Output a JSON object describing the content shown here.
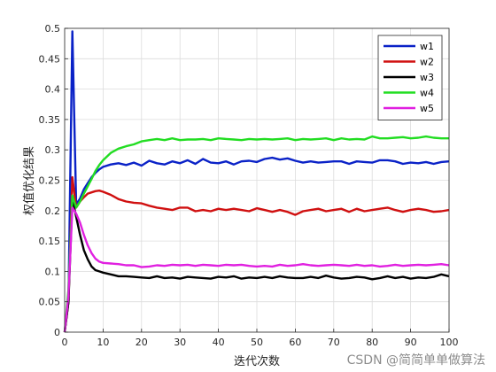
{
  "chart_data": {
    "type": "line",
    "xlabel": "迭代次数",
    "ylabel": "权值优化结果",
    "xlim": [
      0,
      100
    ],
    "ylim": [
      0,
      0.5
    ],
    "xticks": [
      0,
      10,
      20,
      30,
      40,
      50,
      60,
      70,
      80,
      90,
      100
    ],
    "yticks": [
      0,
      0.05,
      0.1,
      0.15,
      0.2,
      0.25,
      0.3,
      0.35,
      0.4,
      0.45,
      0.5
    ],
    "ytick_labels": [
      "0",
      "0.05",
      "0.1",
      "0.15",
      "0.2",
      "0.25",
      "0.3",
      "0.35",
      "0.4",
      "0.45",
      "0.5"
    ],
    "grid": true,
    "legend_position": "top-right",
    "x": [
      0,
      1,
      2,
      3,
      4,
      5,
      6,
      7,
      8,
      9,
      10,
      12,
      14,
      16,
      18,
      20,
      22,
      24,
      26,
      28,
      30,
      32,
      34,
      36,
      38,
      40,
      42,
      44,
      46,
      48,
      50,
      52,
      54,
      56,
      58,
      60,
      62,
      64,
      66,
      68,
      70,
      72,
      74,
      76,
      78,
      80,
      82,
      84,
      86,
      88,
      90,
      92,
      94,
      96,
      98,
      100
    ],
    "series": [
      {
        "name": "w1",
        "color": "#0a22c7",
        "values": [
          0,
          0.05,
          0.495,
          0.21,
          0.22,
          0.235,
          0.245,
          0.255,
          0.262,
          0.268,
          0.272,
          0.276,
          0.278,
          0.275,
          0.279,
          0.274,
          0.282,
          0.278,
          0.276,
          0.281,
          0.278,
          0.283,
          0.277,
          0.285,
          0.279,
          0.278,
          0.281,
          0.276,
          0.281,
          0.282,
          0.28,
          0.285,
          0.287,
          0.284,
          0.286,
          0.282,
          0.279,
          0.281,
          0.279,
          0.28,
          0.281,
          0.281,
          0.277,
          0.281,
          0.28,
          0.279,
          0.283,
          0.283,
          0.281,
          0.277,
          0.279,
          0.278,
          0.28,
          0.277,
          0.28,
          0.281
        ]
      },
      {
        "name": "w2",
        "color": "#d01010",
        "values": [
          0,
          0.05,
          0.255,
          0.205,
          0.215,
          0.222,
          0.228,
          0.23,
          0.232,
          0.233,
          0.231,
          0.226,
          0.219,
          0.215,
          0.213,
          0.212,
          0.208,
          0.205,
          0.203,
          0.201,
          0.205,
          0.205,
          0.199,
          0.201,
          0.199,
          0.203,
          0.201,
          0.203,
          0.201,
          0.199,
          0.204,
          0.201,
          0.198,
          0.201,
          0.198,
          0.193,
          0.199,
          0.201,
          0.203,
          0.199,
          0.201,
          0.203,
          0.198,
          0.203,
          0.199,
          0.201,
          0.203,
          0.205,
          0.201,
          0.198,
          0.201,
          0.203,
          0.201,
          0.198,
          0.199,
          0.201
        ]
      },
      {
        "name": "w3",
        "color": "#000000",
        "values": [
          0,
          0.05,
          0.22,
          0.19,
          0.16,
          0.135,
          0.12,
          0.108,
          0.102,
          0.1,
          0.098,
          0.095,
          0.092,
          0.092,
          0.091,
          0.09,
          0.089,
          0.092,
          0.089,
          0.09,
          0.088,
          0.091,
          0.09,
          0.089,
          0.088,
          0.091,
          0.09,
          0.092,
          0.088,
          0.09,
          0.089,
          0.091,
          0.089,
          0.092,
          0.09,
          0.089,
          0.089,
          0.091,
          0.089,
          0.093,
          0.09,
          0.088,
          0.089,
          0.091,
          0.09,
          0.087,
          0.089,
          0.092,
          0.089,
          0.091,
          0.088,
          0.09,
          0.089,
          0.091,
          0.095,
          0.092
        ]
      },
      {
        "name": "w4",
        "color": "#22dd22",
        "values": [
          0,
          0.07,
          0.225,
          0.205,
          0.215,
          0.228,
          0.24,
          0.252,
          0.265,
          0.275,
          0.283,
          0.295,
          0.302,
          0.306,
          0.309,
          0.314,
          0.316,
          0.318,
          0.316,
          0.319,
          0.316,
          0.317,
          0.317,
          0.318,
          0.316,
          0.319,
          0.318,
          0.317,
          0.316,
          0.318,
          0.317,
          0.318,
          0.317,
          0.318,
          0.319,
          0.316,
          0.318,
          0.317,
          0.318,
          0.319,
          0.316,
          0.319,
          0.317,
          0.318,
          0.317,
          0.322,
          0.319,
          0.319,
          0.32,
          0.321,
          0.319,
          0.32,
          0.322,
          0.32,
          0.319,
          0.319
        ]
      },
      {
        "name": "w5",
        "color": "#e020e0",
        "values": [
          0,
          0.06,
          0.205,
          0.195,
          0.18,
          0.16,
          0.143,
          0.13,
          0.121,
          0.116,
          0.114,
          0.113,
          0.112,
          0.11,
          0.11,
          0.107,
          0.108,
          0.11,
          0.109,
          0.111,
          0.11,
          0.111,
          0.109,
          0.111,
          0.11,
          0.109,
          0.111,
          0.11,
          0.111,
          0.109,
          0.108,
          0.109,
          0.108,
          0.111,
          0.109,
          0.11,
          0.112,
          0.11,
          0.109,
          0.11,
          0.111,
          0.11,
          0.109,
          0.111,
          0.109,
          0.11,
          0.108,
          0.109,
          0.111,
          0.109,
          0.11,
          0.111,
          0.11,
          0.111,
          0.112,
          0.11
        ]
      }
    ]
  },
  "watermark": "CSDN @简简单单做算法"
}
